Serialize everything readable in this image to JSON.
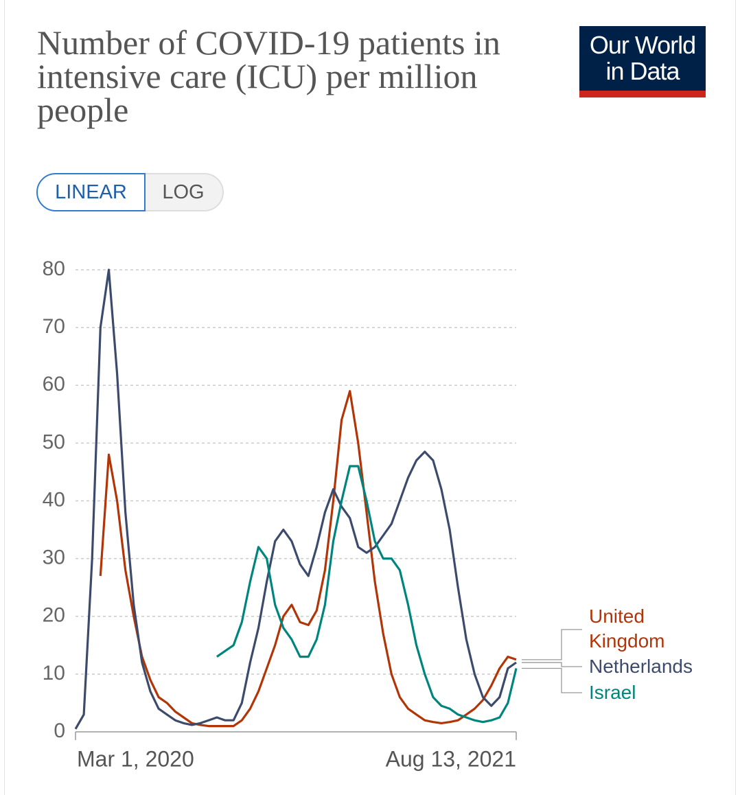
{
  "logo": "Our World in Data",
  "scale_options": [
    "LINEAR",
    "LOG"
  ],
  "chart_data": {
    "type": "line",
    "title": "Number of COVID-19 patients in intensive care (ICU) per million people",
    "log_scale": false,
    "grid": true,
    "x": [
      "2020-03-01",
      "2020-03-11",
      "2020-03-21",
      "2020-03-31",
      "2020-04-10",
      "2020-04-20",
      "2020-04-30",
      "2020-05-10",
      "2020-05-20",
      "2020-05-30",
      "2020-06-09",
      "2020-06-19",
      "2020-06-29",
      "2020-07-09",
      "2020-07-19",
      "2020-07-29",
      "2020-08-08",
      "2020-08-18",
      "2020-08-28",
      "2020-09-07",
      "2020-09-17",
      "2020-09-27",
      "2020-10-07",
      "2020-10-17",
      "2020-10-27",
      "2020-11-06",
      "2020-11-16",
      "2020-11-26",
      "2020-12-06",
      "2020-12-16",
      "2020-12-26",
      "2021-01-05",
      "2021-01-15",
      "2021-01-25",
      "2021-02-04",
      "2021-02-14",
      "2021-02-24",
      "2021-03-06",
      "2021-03-16",
      "2021-03-26",
      "2021-04-05",
      "2021-04-15",
      "2021-04-25",
      "2021-05-05",
      "2021-05-15",
      "2021-05-25",
      "2021-06-04",
      "2021-06-14",
      "2021-06-24",
      "2021-07-04",
      "2021-07-14",
      "2021-07-24",
      "2021-08-03",
      "2021-08-13"
    ],
    "xlim": [
      "2020-03-01",
      "2021-08-13"
    ],
    "xticks": [
      {
        "value": "2020-03-01",
        "label": "Mar 1, 2020"
      },
      {
        "value": "2021-08-13",
        "label": "Aug 13, 2021"
      }
    ],
    "ylim": [
      0,
      80
    ],
    "yticks": [
      0,
      10,
      20,
      30,
      40,
      50,
      60,
      70,
      80
    ],
    "series": [
      {
        "name": "United Kingdom",
        "color": "#b13507",
        "values": [
          null,
          null,
          null,
          27,
          48,
          40,
          28,
          20,
          13,
          9,
          6,
          5,
          3.5,
          2.5,
          1.5,
          1.2,
          1,
          1,
          1,
          1,
          2,
          4,
          7,
          11,
          15,
          20,
          22,
          19,
          18.5,
          21,
          28,
          40,
          54,
          59,
          50,
          38,
          26,
          17,
          10,
          6,
          4,
          3,
          2,
          1.7,
          1.5,
          1.7,
          2,
          3,
          4,
          5.5,
          8,
          11,
          13,
          12.5
        ]
      },
      {
        "name": "Netherlands",
        "color": "#3c4a6b",
        "values": [
          0.5,
          3,
          30,
          70,
          80,
          62,
          38,
          22,
          12,
          7,
          4,
          3,
          2,
          1.5,
          1.2,
          1.5,
          2,
          2.5,
          2,
          2,
          5,
          12,
          18,
          26,
          33,
          35,
          33,
          29,
          27,
          32,
          38,
          42,
          39,
          37,
          32,
          31,
          32,
          34,
          36,
          40,
          44,
          47,
          48.5,
          47,
          42,
          35,
          25,
          16,
          10,
          6,
          4.5,
          6,
          11,
          12
        ]
      },
      {
        "name": "Israel",
        "color": "#00847e",
        "values": [
          null,
          null,
          null,
          null,
          null,
          null,
          null,
          null,
          null,
          null,
          null,
          null,
          null,
          null,
          null,
          null,
          null,
          13,
          14,
          15,
          19,
          26,
          32,
          30,
          22,
          18,
          16,
          13,
          13,
          16,
          22,
          33,
          40,
          46,
          46,
          40,
          33,
          30,
          30,
          28,
          22,
          15,
          10,
          6,
          4.5,
          4,
          3,
          2.5,
          2,
          1.7,
          2,
          2.5,
          5,
          11
        ]
      }
    ]
  }
}
